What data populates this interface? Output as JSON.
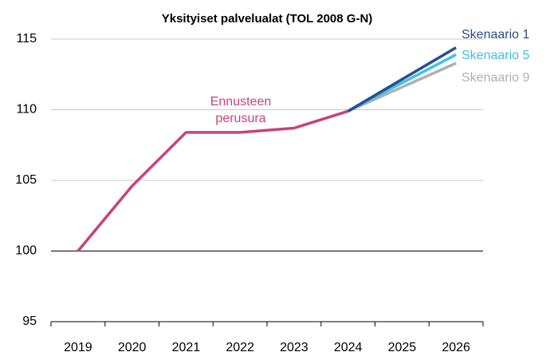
{
  "chart_data": {
    "type": "line",
    "title": "Yksityiset palvelualat (TOL 2008 G-N)",
    "categories": [
      "2019",
      "2020",
      "2021",
      "2022",
      "2023",
      "2024",
      "2025",
      "2026"
    ],
    "ylim": [
      95,
      115
    ],
    "yticks": [
      95,
      100,
      105,
      110,
      115
    ],
    "grid": true,
    "series": [
      {
        "name": "Ennusteen perusura",
        "color": "#c8427a",
        "values": [
          100,
          104.6,
          108.4,
          108.4,
          108.7,
          109.9,
          null,
          null
        ]
      },
      {
        "name": "Skenaario 9",
        "color": "#b0b0b0",
        "values": [
          null,
          null,
          null,
          null,
          null,
          109.9,
          111.6,
          113.3
        ]
      },
      {
        "name": "Skenaario 5",
        "color": "#3cc4e6",
        "values": [
          null,
          null,
          null,
          null,
          null,
          109.9,
          111.9,
          113.9
        ]
      },
      {
        "name": "Skenaario 1",
        "color": "#2b4c8f",
        "values": [
          null,
          null,
          null,
          null,
          null,
          109.9,
          112.15,
          114.4
        ]
      }
    ]
  }
}
